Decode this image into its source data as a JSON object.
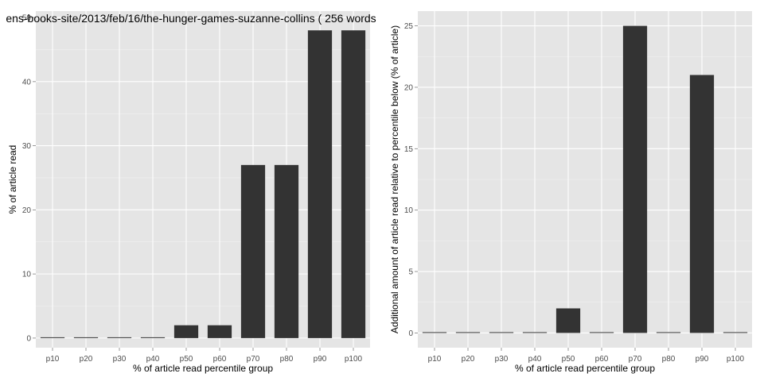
{
  "colors": {
    "panel_background": "#e5e5e5",
    "grid_major": "#ffffff",
    "grid_minor": "#f2f2f2",
    "bar_fill": "#333333",
    "tick_text": "#4d4d4d"
  },
  "chart_data": [
    {
      "type": "bar",
      "title": "ens-books-site/2013/feb/16/the-hunger-games-suzanne-collins ( 256 words",
      "xlabel": "% of article read percentile group",
      "ylabel": "% of article read",
      "categories": [
        "p10",
        "p20",
        "p30",
        "p40",
        "p50",
        "p60",
        "p70",
        "p80",
        "p90",
        "p100"
      ],
      "values": [
        0,
        0,
        0,
        0,
        2,
        2,
        27,
        27,
        48,
        48
      ],
      "yticks": [
        0,
        10,
        20,
        30,
        40,
        50
      ],
      "ylim": [
        -1.5,
        51
      ],
      "grid": true,
      "legend": "none"
    },
    {
      "type": "bar",
      "title": "",
      "xlabel": "% of article read percentile group",
      "ylabel": "Additional amount of article read relative to percentile below (% of article)",
      "categories": [
        "p10",
        "p20",
        "p30",
        "p40",
        "p50",
        "p60",
        "p70",
        "p80",
        "p90",
        "p100"
      ],
      "values": [
        0,
        0,
        0,
        0,
        2,
        0,
        25,
        0,
        21,
        0
      ],
      "yticks": [
        0,
        5,
        10,
        15,
        20,
        25
      ],
      "ylim": [
        -1.2,
        26.2
      ],
      "grid": true,
      "legend": "none"
    }
  ]
}
